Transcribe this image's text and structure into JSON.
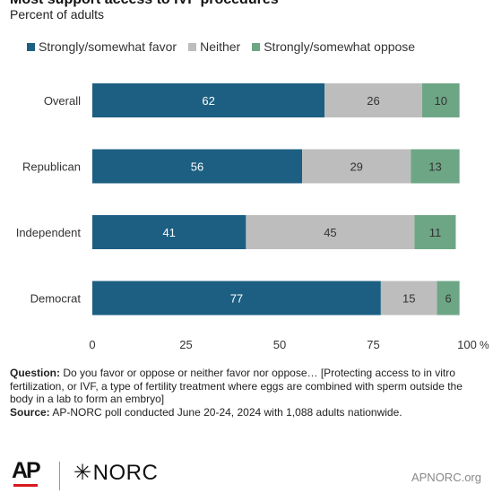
{
  "header": {
    "title": "Most support access to IVF procedures",
    "subtitle": "Percent of adults"
  },
  "legend": {
    "items": [
      {
        "label": "Strongly/somewhat favor",
        "color": "#1c5f82"
      },
      {
        "label": "Neither",
        "color": "#bdbdbd"
      },
      {
        "label": "Strongly/somewhat oppose",
        "color": "#6da685"
      }
    ]
  },
  "chart_data": {
    "type": "bar",
    "orientation": "horizontal",
    "stacked": true,
    "categories": [
      "Overall",
      "Republican",
      "Independent",
      "Democrat"
    ],
    "series": [
      {
        "name": "Strongly/somewhat favor",
        "values": [
          62,
          56,
          41,
          77
        ],
        "color": "#1c5f82"
      },
      {
        "name": "Neither",
        "values": [
          26,
          29,
          45,
          15
        ],
        "color": "#bdbdbd"
      },
      {
        "name": "Strongly/somewhat oppose",
        "values": [
          10,
          13,
          11,
          6
        ],
        "color": "#6da685"
      }
    ],
    "xlim": [
      0,
      100
    ],
    "xticks": [
      "0",
      "25",
      "50",
      "75",
      "100"
    ],
    "xunit": "%",
    "grid": false,
    "legend_position": "top"
  },
  "footnote": {
    "question_label": "Question:",
    "question_text": " Do you favor or oppose or neither favor nor oppose… [Protecting access to in vitro fertilization, or IVF, a type of fertility treatment where eggs are combined with sperm outside the body in a lab to form an embryo]",
    "source_label": "Source:",
    "source_text": " AP-NORC poll conducted June 20-24, 2024 with 1,088 adults nationwide."
  },
  "footer": {
    "ap_logo": "AP",
    "norc_logo": "NORC",
    "url": "APNORC.org"
  }
}
